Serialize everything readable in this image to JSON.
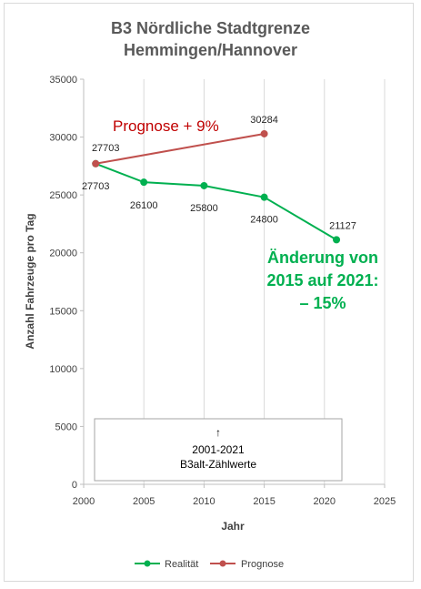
{
  "chart_data": {
    "type": "line",
    "title_line1": "B3 Nördliche Stadtgrenze",
    "title_line2": "Hemmingen/Hannover",
    "xlabel": "Jahr",
    "ylabel": "Anzahl Fahrzeuge pro Tag",
    "xlim": [
      2000,
      2025
    ],
    "ylim": [
      0,
      35000
    ],
    "x_ticks": [
      "2000",
      "2005",
      "2010",
      "2015",
      "2020",
      "2025"
    ],
    "y_ticks": [
      "0",
      "5000",
      "10000",
      "15000",
      "20000",
      "25000",
      "30000",
      "35000"
    ],
    "grid": "vertical",
    "legend_position": "bottom",
    "series": [
      {
        "name": "Realität",
        "color": "#00b050",
        "points": [
          {
            "x": 2001,
            "y": 27703,
            "label": "27703"
          },
          {
            "x": 2005,
            "y": 26100,
            "label": "26100"
          },
          {
            "x": 2010,
            "y": 25800,
            "label": "25800"
          },
          {
            "x": 2015,
            "y": 24800,
            "label": "24800"
          },
          {
            "x": 2021,
            "y": 21127,
            "label": "21127"
          }
        ]
      },
      {
        "name": "Prognose",
        "color": "#c0504d",
        "points": [
          {
            "x": 2001,
            "y": 27703,
            "label": "27703"
          },
          {
            "x": 2015,
            "y": 30284,
            "label": "30284"
          }
        ]
      }
    ],
    "annotations": {
      "prognose": {
        "text": "Prognose  + 9%",
        "color": "#c00000"
      },
      "change": {
        "lines": [
          "Änderung von",
          "2015 auf 2021:",
          "– 15%"
        ],
        "color": "#00b050"
      },
      "box": {
        "arrow": "↑",
        "lines": [
          "2001-2021",
          "B3alt-Zählwerte"
        ]
      }
    }
  }
}
